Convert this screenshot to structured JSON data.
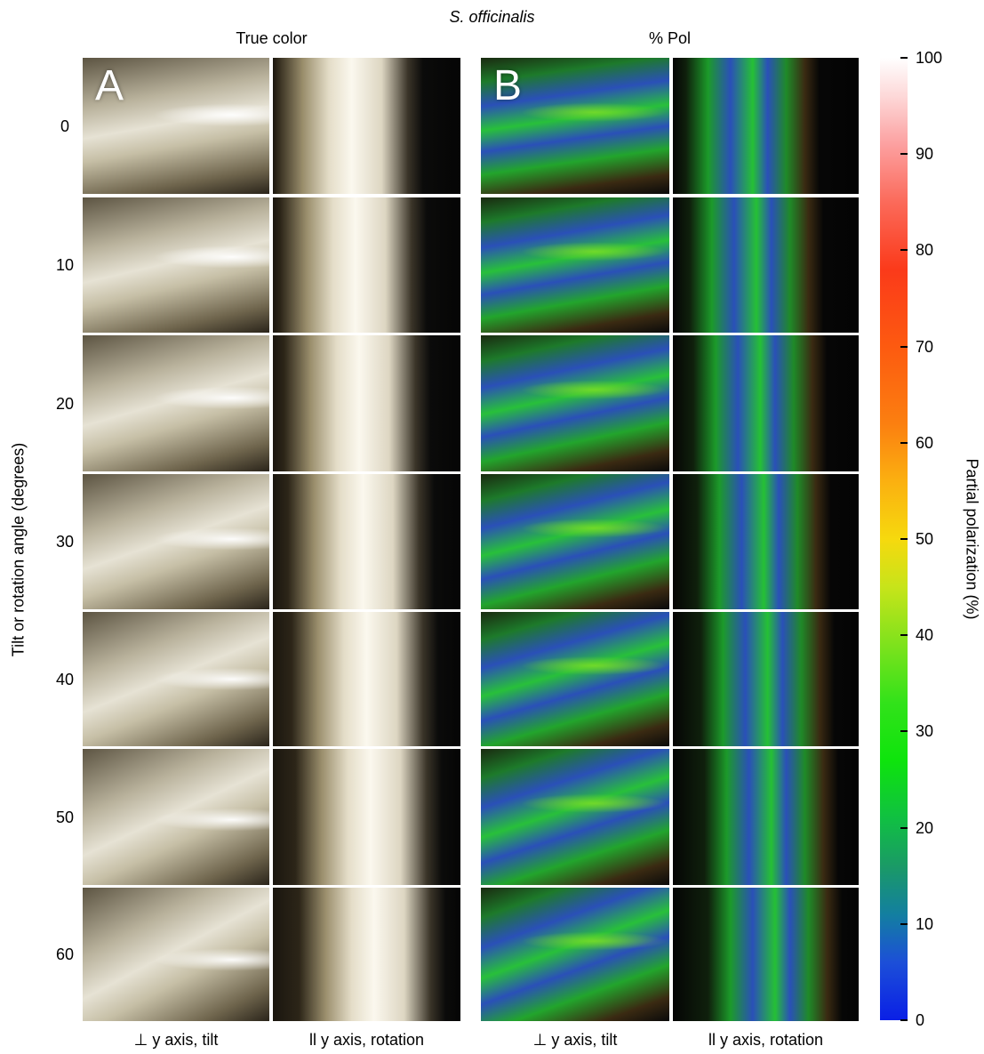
{
  "figure": {
    "species_title": "S. officinalis",
    "panel_group_labels": [
      "True color",
      "% Pol"
    ],
    "panel_letters": [
      "A",
      "B"
    ],
    "y_axis_label": "Tilt or rotation angle (degrees)",
    "row_labels": [
      "0",
      "10",
      "20",
      "30",
      "40",
      "50",
      "60"
    ],
    "column_labels": [
      "⊥ y axis, tilt",
      "ll y axis, rotation",
      "⊥ y axis, tilt",
      "ll y axis, rotation"
    ],
    "colorbar": {
      "label": "Partial polarization (%)",
      "min": 0,
      "max": 100,
      "tick_labels": [
        "0",
        "10",
        "20",
        "30",
        "40",
        "50",
        "60",
        "70",
        "80",
        "90",
        "100"
      ],
      "colormap": [
        "#0a1fe6",
        "#137fa0",
        "#10c042",
        "#0ee40c",
        "#c7e41a",
        "#f6d90e",
        "#fb7f10",
        "#fd5a10",
        "#fb3a1a",
        "#fca0a0",
        "#ffffff"
      ]
    },
    "colors": {
      "true_color_skin": "#d8d2bd",
      "pol_green": "#1bb81f",
      "pol_blue": "#2a50b8",
      "background": "#000000"
    }
  }
}
